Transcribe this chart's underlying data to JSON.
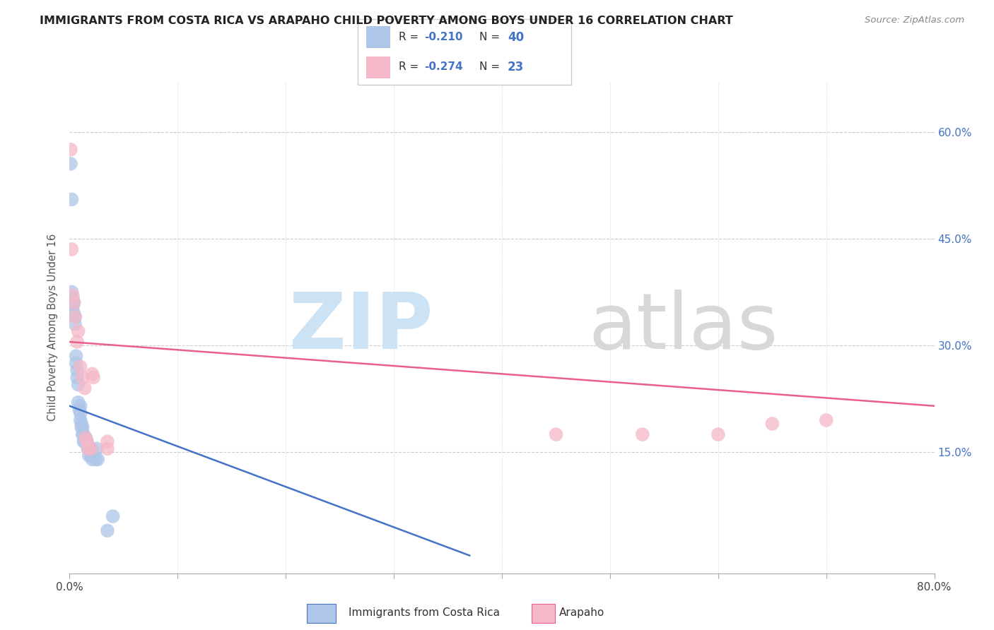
{
  "title": "IMMIGRANTS FROM COSTA RICA VS ARAPAHO CHILD POVERTY AMONG BOYS UNDER 16 CORRELATION CHART",
  "source": "Source: ZipAtlas.com",
  "ylabel": "Child Poverty Among Boys Under 16",
  "ytick_labels": [
    "15.0%",
    "30.0%",
    "45.0%",
    "60.0%"
  ],
  "ytick_values": [
    0.15,
    0.3,
    0.45,
    0.6
  ],
  "xlim": [
    0.0,
    0.8
  ],
  "ylim": [
    -0.02,
    0.67
  ],
  "legend_r1": "-0.210",
  "legend_n1": "40",
  "legend_r2": "-0.274",
  "legend_n2": "23",
  "color_blue": "#aec6e8",
  "color_pink": "#f5b8c8",
  "line_blue": "#4472c4",
  "line_pink": "#e8608a",
  "blue_scatter": [
    [
      0.001,
      0.555
    ],
    [
      0.002,
      0.505
    ],
    [
      0.002,
      0.375
    ],
    [
      0.003,
      0.365
    ],
    [
      0.003,
      0.355
    ],
    [
      0.004,
      0.345
    ],
    [
      0.004,
      0.36
    ],
    [
      0.005,
      0.34
    ],
    [
      0.005,
      0.33
    ],
    [
      0.006,
      0.285
    ],
    [
      0.006,
      0.275
    ],
    [
      0.007,
      0.265
    ],
    [
      0.007,
      0.255
    ],
    [
      0.008,
      0.245
    ],
    [
      0.008,
      0.22
    ],
    [
      0.009,
      0.21
    ],
    [
      0.01,
      0.215
    ],
    [
      0.01,
      0.205
    ],
    [
      0.01,
      0.195
    ],
    [
      0.011,
      0.19
    ],
    [
      0.011,
      0.185
    ],
    [
      0.012,
      0.185
    ],
    [
      0.012,
      0.175
    ],
    [
      0.013,
      0.175
    ],
    [
      0.013,
      0.165
    ],
    [
      0.014,
      0.165
    ],
    [
      0.015,
      0.17
    ],
    [
      0.016,
      0.165
    ],
    [
      0.017,
      0.155
    ],
    [
      0.018,
      0.155
    ],
    [
      0.018,
      0.145
    ],
    [
      0.02,
      0.155
    ],
    [
      0.02,
      0.145
    ],
    [
      0.021,
      0.14
    ],
    [
      0.022,
      0.145
    ],
    [
      0.024,
      0.14
    ],
    [
      0.025,
      0.155
    ],
    [
      0.026,
      0.14
    ],
    [
      0.035,
      0.04
    ],
    [
      0.04,
      0.06
    ]
  ],
  "pink_scatter": [
    [
      0.001,
      0.575
    ],
    [
      0.002,
      0.435
    ],
    [
      0.003,
      0.37
    ],
    [
      0.004,
      0.36
    ],
    [
      0.005,
      0.34
    ],
    [
      0.007,
      0.305
    ],
    [
      0.008,
      0.32
    ],
    [
      0.01,
      0.27
    ],
    [
      0.012,
      0.255
    ],
    [
      0.014,
      0.24
    ],
    [
      0.015,
      0.17
    ],
    [
      0.016,
      0.165
    ],
    [
      0.017,
      0.155
    ],
    [
      0.02,
      0.155
    ],
    [
      0.021,
      0.26
    ],
    [
      0.022,
      0.255
    ],
    [
      0.035,
      0.155
    ],
    [
      0.035,
      0.165
    ],
    [
      0.45,
      0.175
    ],
    [
      0.53,
      0.175
    ],
    [
      0.6,
      0.175
    ],
    [
      0.65,
      0.19
    ],
    [
      0.7,
      0.195
    ]
  ],
  "blue_trend_x": [
    0.0,
    0.37
  ],
  "blue_trend_y": [
    0.215,
    0.005
  ],
  "pink_trend_x": [
    0.0,
    0.8
  ],
  "pink_trend_y": [
    0.305,
    0.215
  ]
}
